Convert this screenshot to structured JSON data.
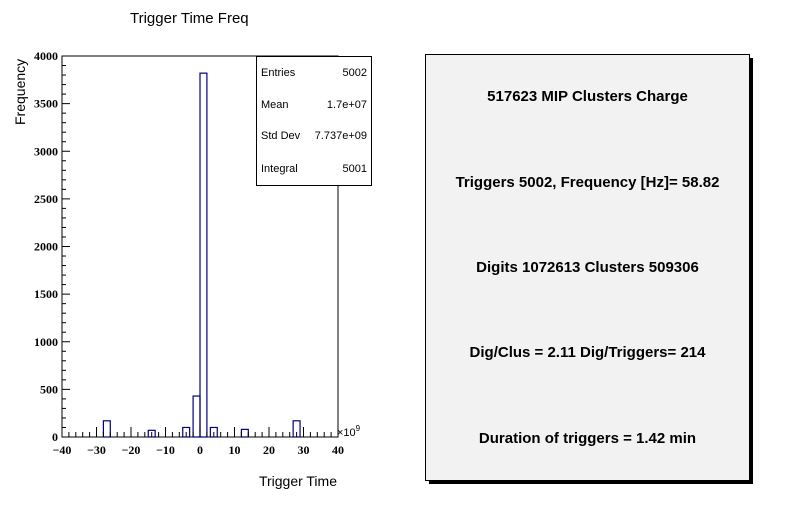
{
  "chart_data": {
    "type": "bar",
    "title": "Trigger Time Freq",
    "xlabel": "Trigger Time",
    "ylabel": "Frequency",
    "x_exponent_label": "×10",
    "x_exponent_power": "9",
    "xlim": [
      -40,
      40
    ],
    "ylim": [
      0,
      4000
    ],
    "x_ticks": [
      -40,
      -30,
      -20,
      -10,
      0,
      10,
      20,
      30,
      40
    ],
    "x_tick_labels": [
      "−40",
      "−30",
      "−20",
      "−10",
      "0",
      "10",
      "20",
      "30",
      "40"
    ],
    "y_ticks": [
      0,
      500,
      1000,
      1500,
      2000,
      2500,
      3000,
      3500,
      4000
    ],
    "y_tick_labels": [
      "0",
      "500",
      "1000",
      "1500",
      "2000",
      "2500",
      "3000",
      "3500",
      "4000"
    ],
    "bins": [
      {
        "x0": -28,
        "x1": -26,
        "value": 170
      },
      {
        "x0": -15,
        "x1": -13,
        "value": 70
      },
      {
        "x0": -5,
        "x1": -3,
        "value": 100
      },
      {
        "x0": -2,
        "x1": 0,
        "value": 430
      },
      {
        "x0": 0,
        "x1": 2,
        "value": 3820
      },
      {
        "x0": 3,
        "x1": 5,
        "value": 100
      },
      {
        "x0": 12,
        "x1": 14,
        "value": 80
      },
      {
        "x0": 27,
        "x1": 29,
        "value": 170
      }
    ],
    "line_color": "#000080",
    "legend": "none",
    "grid": false
  },
  "stats": {
    "rows": [
      {
        "label": "Entries",
        "value": "5002"
      },
      {
        "label": "Mean",
        "value": "1.7e+07"
      },
      {
        "label": "Std Dev",
        "value": "7.737e+09"
      },
      {
        "label": "Integral",
        "value": "5001"
      }
    ]
  },
  "info": {
    "lines": [
      "517623 MIP Clusters Charge",
      "Triggers 5002, Frequency [Hz]= 58.82",
      "Digits 1072613 Clusters 509306",
      "Dig/Clus = 2.11 Dig/Triggers= 214",
      "Duration of triggers = 1.42 min"
    ]
  }
}
